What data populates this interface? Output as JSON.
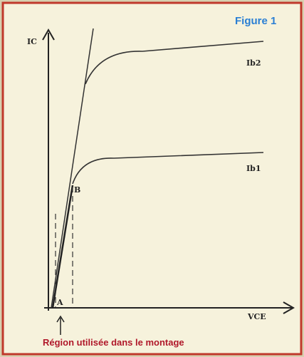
{
  "figure": {
    "label": "Figure 1"
  },
  "axes": {
    "y_label": "IC",
    "x_label": "VCE"
  },
  "curves": [
    {
      "label": "Ib2"
    },
    {
      "label": "Ib1"
    }
  ],
  "points": [
    {
      "label": "B"
    },
    {
      "label": "A"
    }
  ],
  "caption": "Région utilisée dans le montage"
}
